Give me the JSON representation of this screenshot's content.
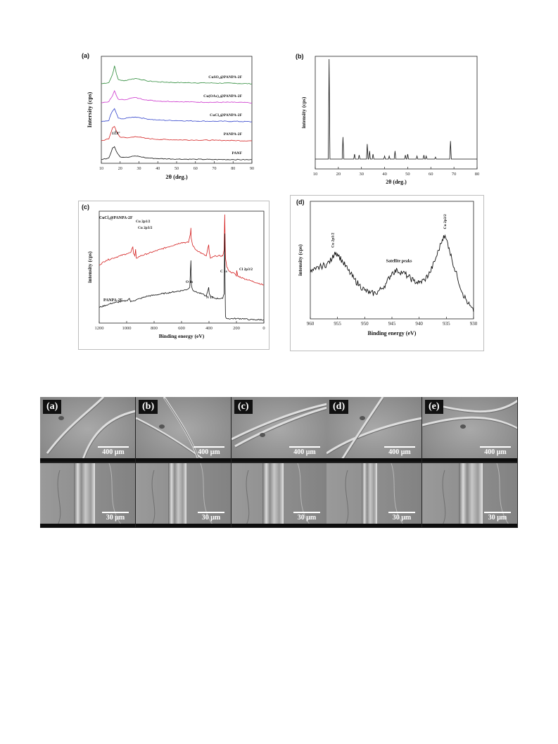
{
  "figure1": {
    "panels": [
      {
        "id": "a",
        "label": "(a)",
        "chart_data": {
          "type": "line",
          "ylabel": "Intersity (cps)",
          "xlabel": "2θ (deg.)",
          "xlim": [
            10,
            90
          ],
          "x_ticks": [
            "10",
            "20",
            "30",
            "40",
            "50",
            "60",
            "70",
            "80",
            "90"
          ],
          "annotation": "15.8°",
          "series": [
            {
              "name": "CuSO₄@PANPA-2F",
              "color": "#2e8b3a",
              "offset": 4,
              "x": [
                10,
                14,
                16,
                17,
                18,
                19,
                22,
                25,
                28,
                30,
                34,
                40,
                50,
                60,
                70,
                80,
                90
              ],
              "y": [
                0.0,
                0.05,
                0.4,
                0.75,
                0.42,
                0.18,
                0.12,
                0.18,
                0.22,
                0.2,
                0.12,
                0.08,
                0.05,
                0.04,
                0.03,
                0.02,
                0.0
              ]
            },
            {
              "name": "Cu(OAc)₂@PANPA-2F",
              "color": "#cc33cc",
              "offset": 3,
              "x": [
                10,
                14,
                16,
                17,
                18,
                19,
                22,
                25,
                28,
                30,
                34,
                40,
                50,
                60,
                70,
                80,
                90
              ],
              "y": [
                0.0,
                0.05,
                0.3,
                0.5,
                0.3,
                0.15,
                0.12,
                0.18,
                0.22,
                0.18,
                0.12,
                0.07,
                0.05,
                0.03,
                0.02,
                0.02,
                0.0
              ]
            },
            {
              "name": "CuCl₂@PANPA-2F",
              "color": "#3344cc",
              "offset": 2,
              "x": [
                10,
                14,
                15,
                16,
                17,
                18,
                19,
                22,
                25,
                28,
                30,
                34,
                40,
                50,
                60,
                70,
                80,
                90
              ],
              "y": [
                0.0,
                0.05,
                0.3,
                0.45,
                0.55,
                0.35,
                0.15,
                0.12,
                0.18,
                0.2,
                0.18,
                0.12,
                0.07,
                0.05,
                0.03,
                0.02,
                0.02,
                0.0
              ]
            },
            {
              "name": "PANPA-2F",
              "color": "#d42020",
              "offset": 1,
              "x": [
                10,
                14,
                16,
                17,
                18,
                20,
                24,
                28,
                30,
                34,
                40,
                50,
                60,
                70,
                80,
                90
              ],
              "y": [
                0.0,
                0.08,
                0.55,
                0.6,
                0.4,
                0.15,
                0.12,
                0.18,
                0.15,
                0.1,
                0.06,
                0.04,
                0.03,
                0.02,
                0.01,
                0.0
              ]
            },
            {
              "name": "PANF",
              "color": "#111111",
              "offset": 0,
              "x": [
                10,
                14,
                16,
                17,
                18,
                20,
                24,
                28,
                30,
                34,
                40,
                50,
                60,
                70,
                80,
                90
              ],
              "y": [
                0.0,
                0.08,
                0.5,
                0.55,
                0.35,
                0.12,
                0.1,
                0.16,
                0.14,
                0.08,
                0.05,
                0.03,
                0.02,
                0.01,
                0.01,
                0.0
              ]
            }
          ]
        }
      },
      {
        "id": "b",
        "label": "(b)",
        "chart_data": {
          "type": "line",
          "ylabel": "intensity (cps)",
          "xlabel": "2θ (deg.)",
          "xlim": [
            10,
            80
          ],
          "ylim": [
            0,
            100
          ],
          "x_ticks": [
            "10",
            "20",
            "30",
            "40",
            "50",
            "60",
            "70",
            "80"
          ],
          "peaks": [
            {
              "x": 16.0,
              "y": 100
            },
            {
              "x": 22.0,
              "y": 22
            },
            {
              "x": 27.0,
              "y": 5
            },
            {
              "x": 29.0,
              "y": 4
            },
            {
              "x": 32.5,
              "y": 15
            },
            {
              "x": 33.5,
              "y": 8
            },
            {
              "x": 35.0,
              "y": 5
            },
            {
              "x": 40.0,
              "y": 3
            },
            {
              "x": 42.0,
              "y": 3
            },
            {
              "x": 44.5,
              "y": 8
            },
            {
              "x": 49.0,
              "y": 4
            },
            {
              "x": 50.0,
              "y": 5
            },
            {
              "x": 54.0,
              "y": 3
            },
            {
              "x": 57.0,
              "y": 4
            },
            {
              "x": 58.0,
              "y": 3
            },
            {
              "x": 62.0,
              "y": 2
            },
            {
              "x": 68.5,
              "y": 18
            }
          ]
        }
      },
      {
        "id": "c",
        "label": "(c)",
        "chart_data": {
          "type": "line",
          "ylabel": "intensity (cps)",
          "xlabel": "Binding energy (eV)",
          "xlim": [
            1200,
            0
          ],
          "x_ticks": [
            "1200",
            "1000",
            "800",
            "600",
            "400",
            "200",
            "0"
          ],
          "annotations": [
            "Cu 2p1/2",
            "Cu 2p3/2",
            "Cl 2p3/2",
            "O 1s",
            "N 1s",
            "C 1s"
          ],
          "series": [
            {
              "name": "CuCl₂@PANPA-2F",
              "color": "#d42020",
              "x": [
                1200,
                1150,
                1100,
                1050,
                1000,
                970,
                955,
                950,
                940,
                935,
                930,
                900,
                850,
                800,
                750,
                700,
                650,
                600,
                550,
                535,
                532,
                530,
                520,
                500,
                450,
                420,
                402,
                398,
                390,
                350,
                300,
                290,
                285,
                283,
                280,
                270,
                250,
                210,
                200,
                198,
                190,
                150,
                100,
                50,
                0
              ],
              "y": [
                0.52,
                0.56,
                0.58,
                0.6,
                0.62,
                0.63,
                0.68,
                0.62,
                0.6,
                0.66,
                0.58,
                0.6,
                0.62,
                0.64,
                0.66,
                0.68,
                0.7,
                0.72,
                0.72,
                0.8,
                0.85,
                0.76,
                0.7,
                0.66,
                0.62,
                0.6,
                0.7,
                0.63,
                0.58,
                0.6,
                0.6,
                0.65,
                0.97,
                0.8,
                0.58,
                0.5,
                0.46,
                0.44,
                0.42,
                0.47,
                0.42,
                0.4,
                0.38,
                0.36,
                0.34
              ]
            },
            {
              "name": "PANPA-2F",
              "color": "#111111",
              "x": [
                1200,
                1150,
                1100,
                1050,
                1000,
                980,
                970,
                950,
                900,
                850,
                800,
                750,
                700,
                650,
                600,
                560,
                540,
                532,
                528,
                520,
                500,
                450,
                420,
                402,
                398,
                390,
                350,
                300,
                290,
                285,
                283,
                280,
                270,
                200,
                150,
                100,
                50,
                0
              ],
              "y": [
                0.14,
                0.16,
                0.18,
                0.19,
                0.2,
                0.22,
                0.19,
                0.2,
                0.22,
                0.24,
                0.25,
                0.26,
                0.27,
                0.28,
                0.29,
                0.3,
                0.32,
                0.56,
                0.34,
                0.3,
                0.28,
                0.26,
                0.24,
                0.32,
                0.26,
                0.24,
                0.22,
                0.22,
                0.26,
                0.8,
                0.4,
                0.06,
                0.04,
                0.04,
                0.04,
                0.03,
                0.03,
                0.03
              ]
            }
          ]
        }
      },
      {
        "id": "d",
        "label": "(d)",
        "chart_data": {
          "type": "line",
          "ylabel": "intensity (cps)",
          "xlabel": "Binding energy (eV)",
          "xlim": [
            960,
            930
          ],
          "x_ticks": [
            "960",
            "955",
            "950",
            "945",
            "940",
            "935",
            "930"
          ],
          "annotations": [
            "Cu 2p1/2",
            "Satellite peaks",
            "Cu 2p3/2"
          ],
          "series": [
            {
              "name": "Cu 2p",
              "color": "#111111",
              "x": [
                960,
                959,
                958,
                957,
                956,
                955.5,
                955,
                954,
                953,
                952,
                951,
                950,
                949,
                948,
                947,
                946,
                945,
                944,
                943,
                942,
                941,
                940,
                939,
                938,
                937,
                936,
                935.5,
                935,
                934.5,
                934,
                933,
                932,
                931,
                930
              ],
              "y": [
                0.42,
                0.45,
                0.48,
                0.5,
                0.55,
                0.62,
                0.6,
                0.52,
                0.44,
                0.36,
                0.3,
                0.25,
                0.22,
                0.22,
                0.26,
                0.32,
                0.42,
                0.44,
                0.42,
                0.38,
                0.34,
                0.32,
                0.35,
                0.42,
                0.55,
                0.7,
                0.78,
                0.74,
                0.66,
                0.55,
                0.38,
                0.22,
                0.12,
                0.04
              ]
            }
          ]
        }
      }
    ]
  },
  "figure2": {
    "panels": [
      {
        "label": "(a)",
        "scale_top": "400 μm",
        "scale_bottom": "30 μm"
      },
      {
        "label": "(b)",
        "scale_top": "400 μm",
        "scale_bottom": "30 μm"
      },
      {
        "label": "(c)",
        "scale_top": "400 μm",
        "scale_bottom": "30 μm"
      },
      {
        "label": "(d)",
        "scale_top": "400 μm",
        "scale_bottom": "30 μm"
      },
      {
        "label": "(e)",
        "scale_top": "400 μm",
        "scale_bottom": "30 μm"
      }
    ]
  }
}
